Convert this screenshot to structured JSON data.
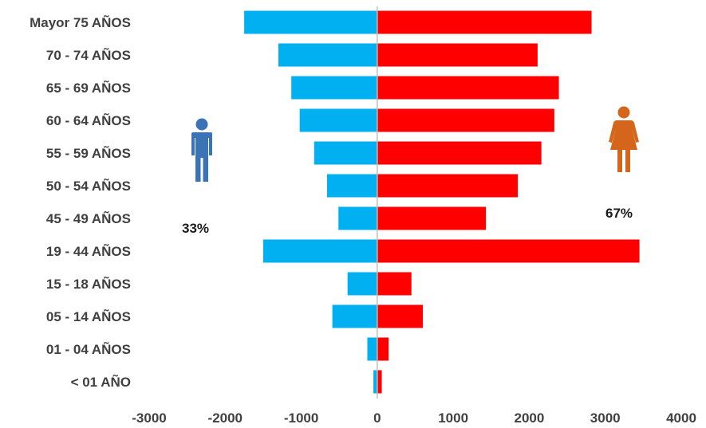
{
  "chart_data": {
    "type": "bar",
    "orientation": "horizontal",
    "categories": [
      "Mayor 75 AÑOS",
      "70 - 74 AÑOS",
      "65 - 69 AÑOS",
      "60 - 64  AÑOS",
      "55 - 59 AÑOS",
      "50 - 54 AÑOS",
      "45 - 49 AÑOS",
      "19 - 44 AÑOS",
      "15 - 18 AÑOS",
      "05 - 14 AÑOS",
      "01 - 04 AÑOS",
      "< 01 AÑO"
    ],
    "series": [
      {
        "values": [
          -1750,
          -1300,
          -1130,
          -1020,
          -830,
          -660,
          -510,
          -1500,
          -390,
          -590,
          -130,
          -50
        ],
        "color": "#00B0F0"
      },
      {
        "values": [
          2820,
          2110,
          2390,
          2330,
          2160,
          1850,
          1430,
          3450,
          450,
          600,
          150,
          60
        ],
        "color": "#FF0000"
      }
    ],
    "xlim": [
      -3000,
      4000
    ],
    "xticks": [
      "-3000",
      "-2000",
      "-1000",
      "0",
      "1000",
      "2000",
      "3000",
      "4000"
    ],
    "title": "",
    "xlabel": "",
    "ylabel": "",
    "grid": false,
    "legend": "none"
  },
  "annotations": {
    "male_percent": "33%",
    "female_percent": "67%",
    "male_icon": "male-person-icon",
    "female_icon": "female-person-icon",
    "male_icon_color": "#3B73B6",
    "female_icon_color": "#D4651A"
  }
}
